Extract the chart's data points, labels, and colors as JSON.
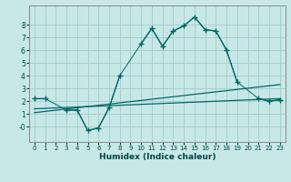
{
  "xlabel": "Humidex (Indice chaleur)",
  "background_color": "#c8e8e8",
  "grid_color": "#a8cece",
  "line_color": "#006666",
  "xlim": [
    -0.5,
    23.5
  ],
  "ylim": [
    -1.2,
    9.5
  ],
  "yticks": [
    0,
    1,
    2,
    3,
    4,
    5,
    6,
    7,
    8
  ],
  "ytick_labels": [
    "-0",
    "1",
    "2",
    "3",
    "4",
    "5",
    "6",
    "7",
    "8"
  ],
  "xticks": [
    0,
    1,
    2,
    3,
    4,
    5,
    6,
    7,
    8,
    9,
    10,
    11,
    12,
    13,
    14,
    15,
    16,
    17,
    18,
    19,
    20,
    21,
    22,
    23
  ],
  "line1_x": [
    0,
    1,
    3,
    4,
    5,
    6,
    7,
    8,
    10,
    11,
    12,
    13,
    14,
    15,
    16,
    17,
    18,
    19,
    21,
    22,
    23
  ],
  "line1_y": [
    2.2,
    2.2,
    1.3,
    1.3,
    -0.3,
    -0.1,
    1.5,
    4.0,
    6.5,
    7.7,
    6.3,
    7.5,
    7.9,
    8.6,
    7.6,
    7.5,
    6.0,
    3.5,
    2.2,
    2.0,
    2.1
  ],
  "line1_segments": [
    [
      [
        0,
        1
      ],
      [
        2.2,
        2.2
      ]
    ],
    [
      [
        3,
        4,
        5,
        6,
        7,
        8
      ],
      [
        1.3,
        1.3,
        -0.3,
        -0.1,
        1.5,
        4.0
      ]
    ],
    [
      [
        10,
        11,
        12,
        13,
        14,
        15,
        16,
        17,
        18,
        19
      ],
      [
        6.5,
        7.7,
        6.3,
        7.5,
        7.9,
        8.6,
        7.6,
        7.5,
        6.0,
        3.5
      ]
    ],
    [
      [
        21,
        22,
        23
      ],
      [
        2.2,
        2.0,
        2.1
      ]
    ]
  ],
  "line2_x": [
    0,
    23
  ],
  "line2_y": [
    1.1,
    3.3
  ],
  "line3_x": [
    0,
    23
  ],
  "line3_y": [
    1.4,
    2.2
  ]
}
